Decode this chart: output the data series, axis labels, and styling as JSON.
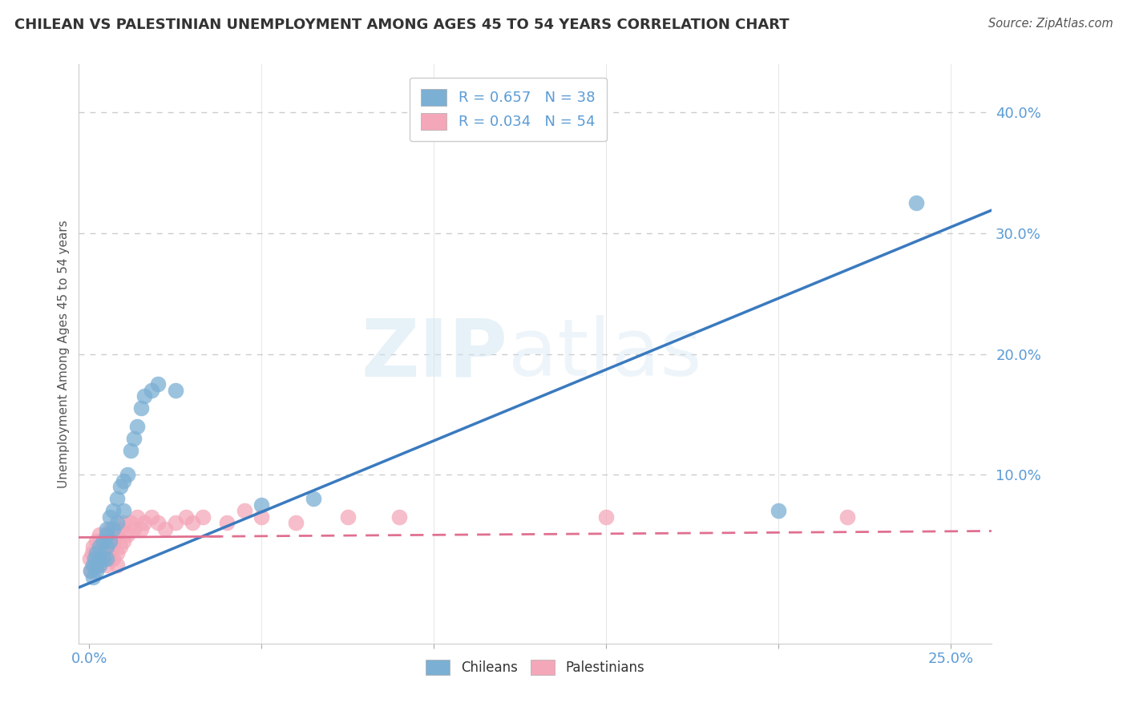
{
  "title": "CHILEAN VS PALESTINIAN UNEMPLOYMENT AMONG AGES 45 TO 54 YEARS CORRELATION CHART",
  "source": "Source: ZipAtlas.com",
  "xlim": [
    -0.003,
    0.262
  ],
  "ylim": [
    -0.04,
    0.44
  ],
  "chilean_color": "#7bafd4",
  "palestinian_color": "#f4a7b9",
  "chilean_line_color": "#3a7abf",
  "palestinian_line_color": "#e07090",
  "legend_R_chilean": "R = 0.657",
  "legend_N_chilean": "N = 38",
  "legend_R_palestinian": "R = 0.034",
  "legend_N_palestinian": "N = 54",
  "chileans_x": [
    0.0005,
    0.001,
    0.001,
    0.0015,
    0.002,
    0.002,
    0.002,
    0.003,
    0.003,
    0.003,
    0.004,
    0.004,
    0.005,
    0.005,
    0.005,
    0.005,
    0.006,
    0.006,
    0.007,
    0.007,
    0.008,
    0.008,
    0.009,
    0.01,
    0.01,
    0.011,
    0.012,
    0.013,
    0.014,
    0.015,
    0.016,
    0.018,
    0.02,
    0.025,
    0.05,
    0.065,
    0.2,
    0.24
  ],
  "chileans_y": [
    0.02,
    0.015,
    0.025,
    0.03,
    0.02,
    0.035,
    0.025,
    0.03,
    0.04,
    0.025,
    0.045,
    0.03,
    0.055,
    0.04,
    0.03,
    0.05,
    0.065,
    0.045,
    0.07,
    0.055,
    0.08,
    0.06,
    0.09,
    0.095,
    0.07,
    0.1,
    0.12,
    0.13,
    0.14,
    0.155,
    0.165,
    0.17,
    0.175,
    0.17,
    0.075,
    0.08,
    0.07,
    0.325
  ],
  "palestinians_x": [
    0.0002,
    0.0005,
    0.0008,
    0.001,
    0.001,
    0.0015,
    0.002,
    0.002,
    0.002,
    0.003,
    0.003,
    0.003,
    0.003,
    0.004,
    0.004,
    0.004,
    0.005,
    0.005,
    0.005,
    0.006,
    0.006,
    0.006,
    0.006,
    0.007,
    0.007,
    0.007,
    0.008,
    0.008,
    0.008,
    0.009,
    0.009,
    0.01,
    0.01,
    0.011,
    0.012,
    0.013,
    0.014,
    0.015,
    0.016,
    0.018,
    0.02,
    0.022,
    0.025,
    0.028,
    0.03,
    0.033,
    0.04,
    0.045,
    0.05,
    0.06,
    0.075,
    0.09,
    0.15,
    0.22
  ],
  "palestinians_y": [
    0.03,
    0.02,
    0.035,
    0.025,
    0.04,
    0.03,
    0.035,
    0.025,
    0.045,
    0.03,
    0.04,
    0.025,
    0.05,
    0.035,
    0.045,
    0.03,
    0.04,
    0.025,
    0.05,
    0.035,
    0.045,
    0.055,
    0.03,
    0.04,
    0.03,
    0.045,
    0.035,
    0.05,
    0.025,
    0.04,
    0.055,
    0.045,
    0.06,
    0.05,
    0.06,
    0.055,
    0.065,
    0.055,
    0.06,
    0.065,
    0.06,
    0.055,
    0.06,
    0.065,
    0.06,
    0.065,
    0.06,
    0.07,
    0.065,
    0.06,
    0.065,
    0.065,
    0.065,
    0.065
  ],
  "watermark_zip": "ZIP",
  "watermark_atlas": "atlas",
  "ylabel": "Unemployment Among Ages 45 to 54 years",
  "grid_color": "#cccccc",
  "axis_label_color": "#5b9bd5",
  "bg_color": "#ffffff",
  "chilean_trendline_slope": 1.18,
  "chilean_trendline_intercept": 0.01,
  "palestinian_trendline_slope": 0.02,
  "palestinian_trendline_intercept": 0.048
}
